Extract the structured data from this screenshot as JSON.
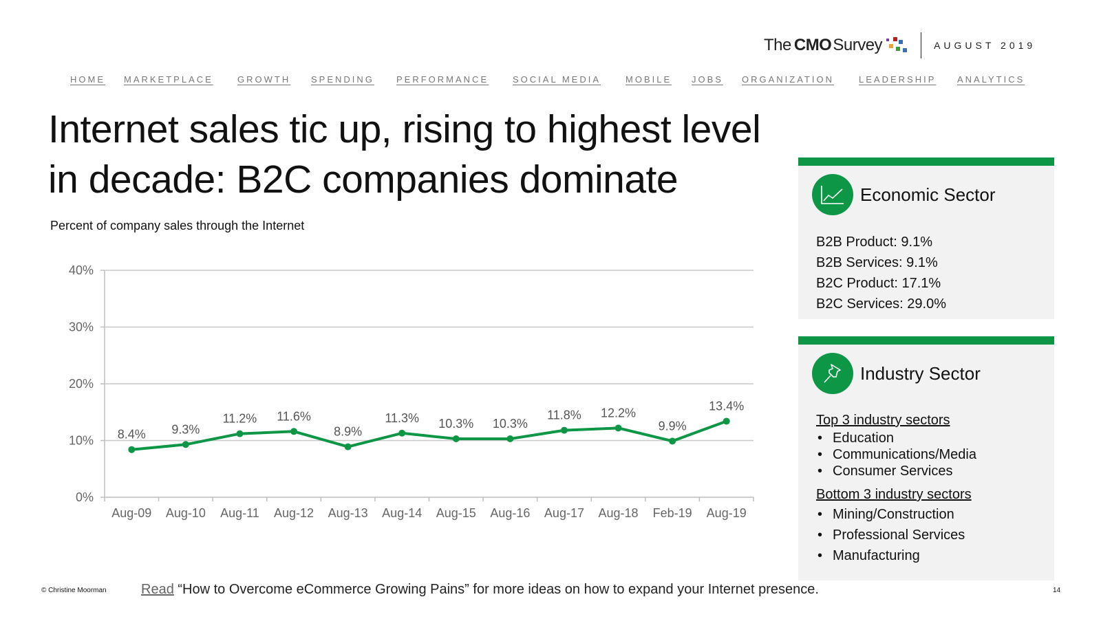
{
  "brand": {
    "logo_the": "The",
    "logo_cmo": "CMO",
    "logo_survey": "Survey",
    "date": "AUGUST 2019",
    "dot_colors": [
      "#b22222",
      "#3a6fb5",
      "#e8a33d",
      "#3f9c35",
      "#7a3f9d"
    ]
  },
  "nav": [
    "HOME",
    "MARKETPLACE",
    "GROWTH",
    "SPENDING",
    "PERFORMANCE",
    "SOCIAL MEDIA",
    "MOBILE",
    "JOBS",
    "ORGANIZATION",
    "LEADERSHIP",
    "ANALYTICS"
  ],
  "title_line1": "Internet sales tic up, rising to highest level",
  "title_line2": "in decade: B2C companies dominate",
  "subtitle": "Percent of company sales through the Internet",
  "chart_data": {
    "type": "line",
    "title": "Percent of company sales through the Internet",
    "categories": [
      "Aug-09",
      "Aug-10",
      "Aug-11",
      "Aug-12",
      "Aug-13",
      "Aug-14",
      "Aug-15",
      "Aug-16",
      "Aug-17",
      "Aug-18",
      "Feb-19",
      "Aug-19"
    ],
    "series": [
      {
        "name": "Internet sales",
        "values": [
          8.4,
          9.3,
          11.2,
          11.6,
          8.9,
          11.3,
          10.3,
          10.3,
          11.8,
          12.2,
          9.9,
          13.4
        ],
        "color": "#0e9647"
      }
    ],
    "data_labels": [
      "8.4%",
      "9.3%",
      "11.2%",
      "11.6%",
      "8.9%",
      "11.3%",
      "10.3%",
      "10.3%",
      "11.8%",
      "12.2%",
      "9.9%",
      "13.4%"
    ],
    "y_ticks": [
      0,
      10,
      20,
      30,
      40
    ],
    "y_tick_labels": [
      "0%",
      "10%",
      "20%",
      "30%",
      "40%"
    ],
    "ylim": [
      0,
      40
    ],
    "xlabel": "",
    "ylabel": "",
    "grid": true,
    "grid_color": "#c8c8c8"
  },
  "economic": {
    "title": "Economic Sector",
    "items": [
      "B2B Product: 9.1%",
      "B2B Services: 9.1%",
      "B2C Product: 17.1%",
      "B2C Services: 29.0%"
    ]
  },
  "industry": {
    "title": "Industry Sector",
    "top_heading": "Top 3 industry sectors",
    "top": [
      "Education",
      "Communications/Media",
      "Consumer Services"
    ],
    "bottom_heading": "Bottom 3 industry sectors",
    "bottom": [
      "Mining/Construction",
      "Professional Services",
      "Manufacturing"
    ]
  },
  "footer": {
    "copyright": "© Christine Moorman",
    "read_link": "Read",
    "read_text": " “How to Overcome eCommerce Growing Pains” for more ideas on how to expand your Internet presence.",
    "page": "14"
  },
  "accent": "#0e9647"
}
